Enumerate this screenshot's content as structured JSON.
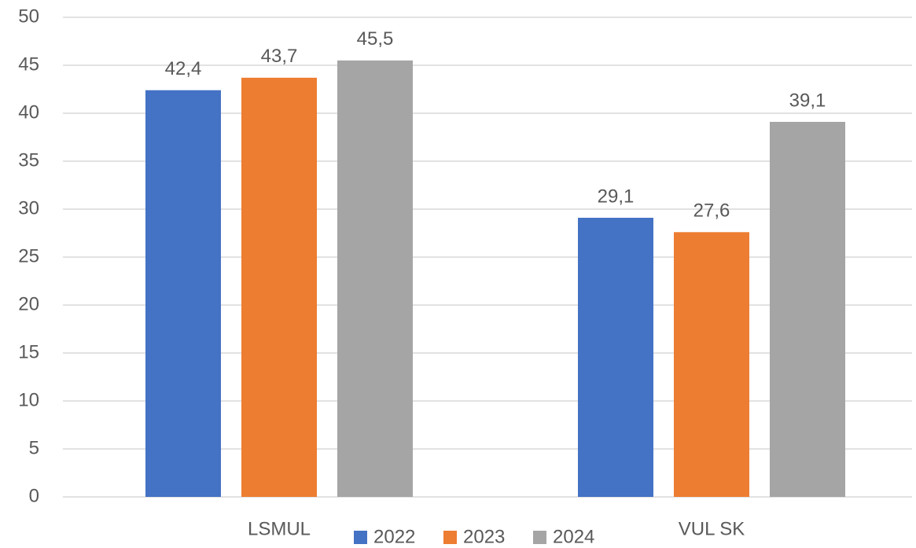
{
  "chart_data": {
    "type": "bar",
    "categories": [
      "LSMUL",
      "VUL SK"
    ],
    "series": [
      {
        "name": "2022",
        "color": "#4472c4",
        "values": [
          42.4,
          29.1
        ],
        "value_labels": [
          "42,4",
          "29,1"
        ]
      },
      {
        "name": "2023",
        "color": "#ed7d31",
        "values": [
          43.7,
          27.6
        ],
        "value_labels": [
          "43,7",
          "27,6"
        ]
      },
      {
        "name": "2024",
        "color": "#a5a5a5",
        "values": [
          45.5,
          39.1
        ],
        "value_labels": [
          "45,5",
          "39,1"
        ]
      }
    ],
    "ylim": [
      0,
      50
    ],
    "yticks": [
      0,
      5,
      10,
      15,
      20,
      25,
      30,
      35,
      40,
      45,
      50
    ],
    "grid": true,
    "legend": "bottom"
  }
}
